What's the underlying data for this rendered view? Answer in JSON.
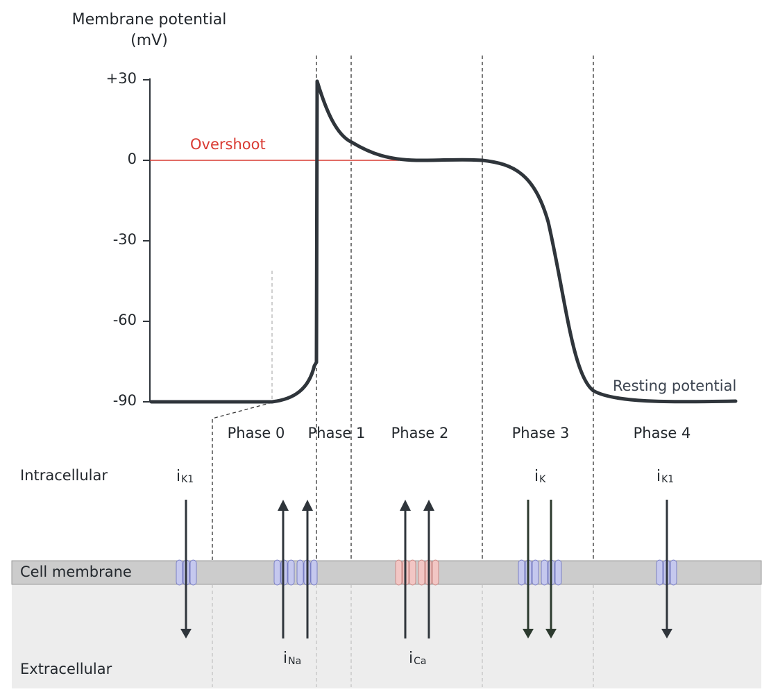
{
  "y_axis": {
    "title_line1": "Membrane potential",
    "title_line2": "(mV)",
    "ticks": [
      "+30",
      "0",
      "-30",
      "-60",
      "-90"
    ],
    "tick_values": [
      30,
      0,
      -30,
      -60,
      -90
    ]
  },
  "annotations": {
    "overshoot": "Overshoot",
    "resting": "Resting potential"
  },
  "phases": [
    "Phase 0",
    "Phase 1",
    "Phase 2",
    "Phase 3",
    "Phase 4"
  ],
  "regions": {
    "intracellular": "Intracellular",
    "membrane": "Cell membrane",
    "extracellular": "Extracellular"
  },
  "currents": [
    {
      "base": "i",
      "sub": "K1",
      "direction": "outward-down"
    },
    {
      "base": "i",
      "sub": "Na",
      "direction": "inward-up"
    },
    {
      "base": "i",
      "sub": "Ca",
      "direction": "inward-up"
    },
    {
      "base": "i",
      "sub": "K",
      "direction": "outward-down"
    },
    {
      "base": "i",
      "sub": "K1",
      "direction": "outward-down"
    }
  ],
  "colors": {
    "trace": "#2f353b",
    "overshoot": "#d93a32",
    "membrane": "#cccccc",
    "extracellular_bg": "#ededed",
    "channel_k_na": "#c5c8ee",
    "channel_ca": "#f2c6c4",
    "arrow_dark": "#2f353b",
    "arrow_green": "#2c3a2e"
  }
}
